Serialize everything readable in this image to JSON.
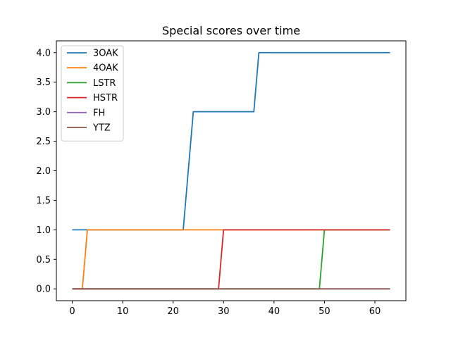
{
  "chart_data": {
    "type": "line",
    "title": "Special scores over time",
    "xlabel": "",
    "ylabel": "",
    "xlim": [
      -3.15,
      66.15
    ],
    "ylim": [
      -0.2,
      4.2
    ],
    "xticks": [
      0,
      10,
      20,
      30,
      40,
      50,
      60
    ],
    "yticks": [
      0.0,
      0.5,
      1.0,
      1.5,
      2.0,
      2.5,
      3.0,
      3.5,
      4.0
    ],
    "ytick_labels": [
      "0.0",
      "0.5",
      "1.0",
      "1.5",
      "2.0",
      "2.5",
      "3.0",
      "3.5",
      "4.0"
    ],
    "legend_position": "top-left",
    "series": [
      {
        "name": "3OAK",
        "color": "#1f77b4",
        "points": [
          [
            0,
            1
          ],
          [
            22,
            1
          ],
          [
            24,
            3
          ],
          [
            36,
            3
          ],
          [
            37,
            4
          ],
          [
            63,
            4
          ]
        ]
      },
      {
        "name": "4OAK",
        "color": "#ff7f0e",
        "points": [
          [
            0,
            0
          ],
          [
            2,
            0
          ],
          [
            3,
            1
          ],
          [
            63,
            1
          ]
        ]
      },
      {
        "name": "LSTR",
        "color": "#2ca02c",
        "points": [
          [
            0,
            0
          ],
          [
            49,
            0
          ],
          [
            50,
            1
          ],
          [
            63,
            1
          ]
        ]
      },
      {
        "name": "HSTR",
        "color": "#d62728",
        "points": [
          [
            0,
            0
          ],
          [
            29,
            0
          ],
          [
            30,
            1
          ],
          [
            63,
            1
          ]
        ]
      },
      {
        "name": "FH",
        "color": "#9467bd",
        "points": [
          [
            0,
            0
          ],
          [
            63,
            0
          ]
        ]
      },
      {
        "name": "YTZ",
        "color": "#8c564b",
        "points": [
          [
            0,
            0
          ],
          [
            63,
            0
          ]
        ]
      }
    ]
  }
}
